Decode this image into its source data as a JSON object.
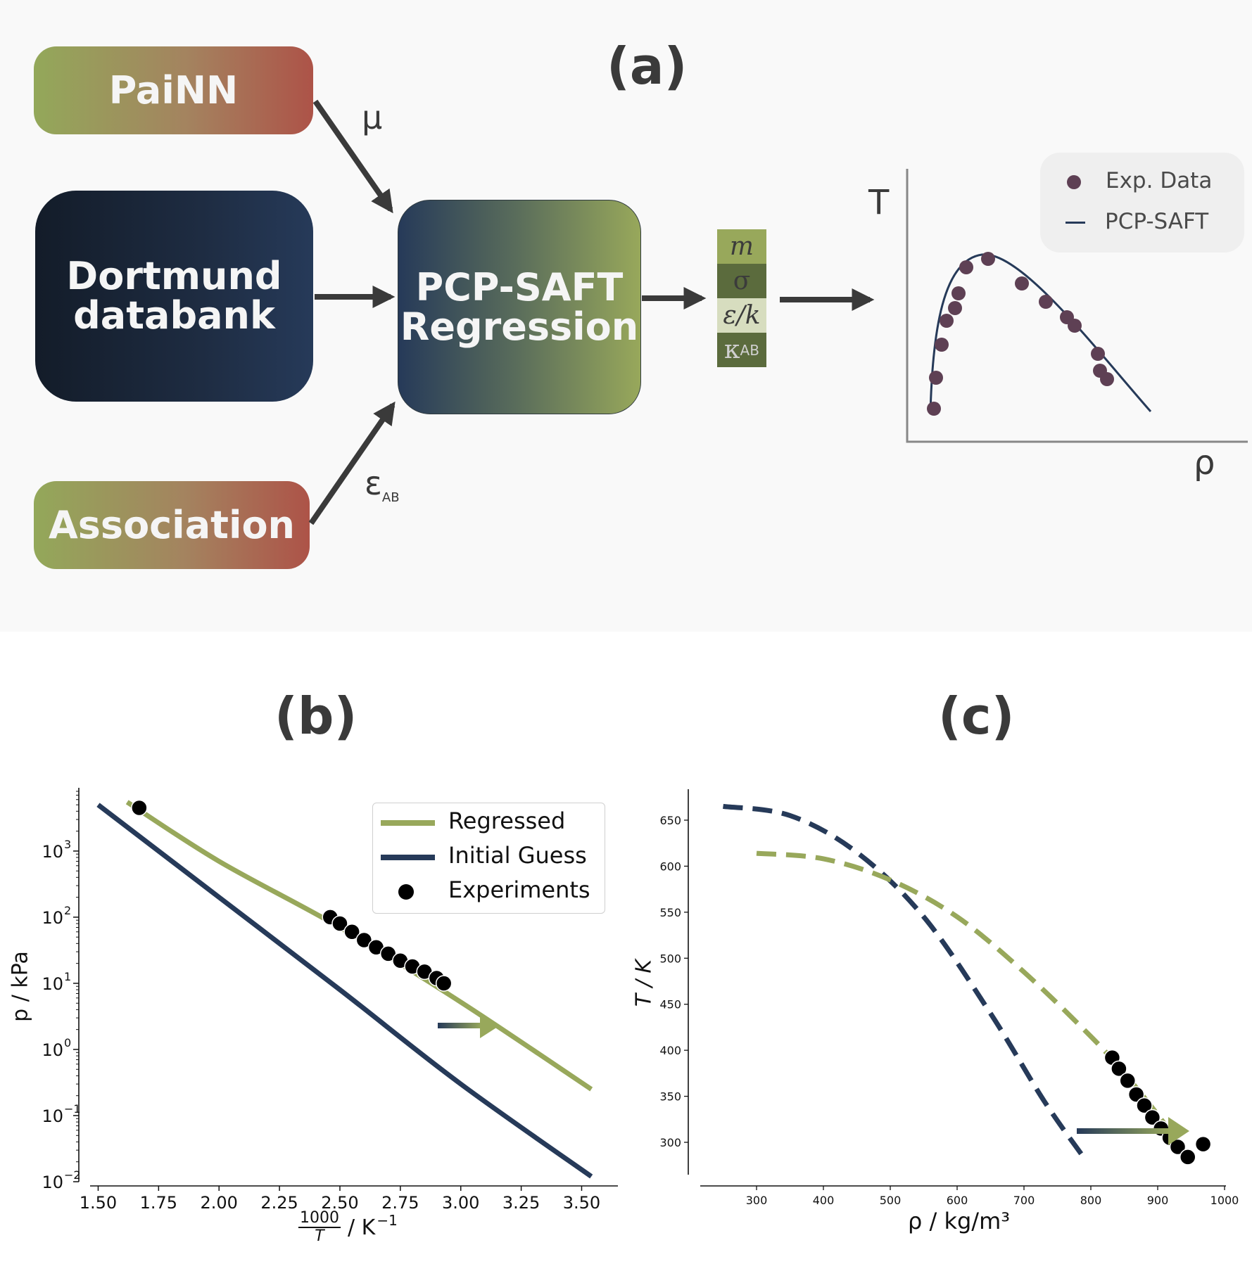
{
  "panel_a": {
    "label": "(a)",
    "boxes": {
      "painn": "PaiNN",
      "dortmund_line1": "Dortmund",
      "dortmund_line2": "databank",
      "association": "Association",
      "pcp_line1": "PCP-SAFT",
      "pcp_line2": "Regression"
    },
    "arrow_labels": {
      "mu": "μ",
      "eps": "ε",
      "eps_sub": "AB"
    },
    "parameters": [
      "m",
      "σ",
      "ε/k",
      "κ"
    ],
    "kappa_sub": "AB",
    "sketch": {
      "y_label": "T",
      "x_label": "ρ",
      "legend": [
        "Exp. Data",
        "PCP-SAFT"
      ]
    },
    "colors": {
      "green": "#98a85b",
      "navy": "#263a59",
      "red": "#ad5348",
      "arrow": "#3a3a3a"
    }
  },
  "panel_b": {
    "label": "(b)",
    "xlabel_num": "1000",
    "xlabel_den": "T",
    "xlabel_unit": "/ K",
    "xlabel_exp": "−1",
    "ylabel": "p / kPa",
    "legend": [
      "Regressed",
      "Initial Guess",
      "Experiments"
    ]
  },
  "panel_c": {
    "label": "(c)",
    "xlabel": "ρ / kg/m³",
    "ylabel": "T / K"
  },
  "chart_data": [
    {
      "type": "line",
      "panel": "(b)",
      "xlabel": "1000/T / K⁻¹",
      "ylabel": "p / kPa",
      "yscale": "log",
      "xlim": [
        1.42,
        3.65
      ],
      "ylim": [
        0.01,
        8000
      ],
      "xticks": [
        "1.50",
        "1.75",
        "2.00",
        "2.25",
        "2.50",
        "2.75",
        "3.00",
        "3.25",
        "3.50"
      ],
      "yticks": [
        "10",
        "10",
        "10",
        "10",
        "10",
        "10"
      ],
      "ytick_exps": [
        "−2",
        "−1",
        "0",
        "1",
        "2",
        "3"
      ],
      "ytick_values": [
        0.01,
        0.1,
        1,
        10,
        100,
        1000
      ],
      "legend_position": "top-right",
      "series": [
        {
          "name": "Regressed",
          "color": "#98a85b",
          "x": [
            1.62,
            2.0,
            2.5,
            3.0,
            3.54
          ],
          "y": [
            5500,
            700,
            70,
            5.2,
            0.25
          ]
        },
        {
          "name": "Initial Guess",
          "color": "#263a59",
          "x": [
            1.5,
            2.0,
            2.5,
            3.0,
            3.54
          ],
          "y": [
            5000,
            200,
            8,
            0.3,
            0.012
          ]
        },
        {
          "name": "Experiments",
          "color": "#000000",
          "marker": "o",
          "x": [
            1.67,
            2.46,
            2.5,
            2.55,
            2.6,
            2.65,
            2.7,
            2.75,
            2.8,
            2.85,
            2.9,
            2.93
          ],
          "y": [
            4500,
            100,
            80,
            60,
            45,
            35,
            28,
            22,
            18,
            15,
            12,
            10
          ]
        }
      ]
    },
    {
      "type": "line",
      "panel": "(c)",
      "xlabel": "ρ / kg/m³",
      "ylabel": "T / K",
      "xlim": [
        215,
        1000
      ],
      "ylim": [
        270,
        683
      ],
      "xticks": [
        "300",
        "400",
        "500",
        "600",
        "700",
        "800",
        "900",
        "1000"
      ],
      "xtick_values": [
        300,
        400,
        500,
        600,
        700,
        800,
        900,
        1000
      ],
      "yticks": [
        "300",
        "350",
        "400",
        "450",
        "500",
        "550",
        "600",
        "650"
      ],
      "ytick_values": [
        300,
        350,
        400,
        450,
        500,
        550,
        600,
        650
      ],
      "series": [
        {
          "name": "Initial Guess",
          "color": "#263a59",
          "style": "dashed",
          "x": [
            250,
            350,
            450,
            550,
            650,
            730,
            790
          ],
          "y": [
            665,
            655,
            615,
            545,
            440,
            345,
            283
          ]
        },
        {
          "name": "Regressed",
          "color": "#98a85b",
          "style": "dashed",
          "x": [
            300,
            400,
            500,
            600,
            700,
            800,
            850,
            900,
            945
          ],
          "y": [
            614,
            608,
            585,
            545,
            485,
            415,
            375,
            330,
            285
          ]
        },
        {
          "name": "Experiments",
          "color": "#000000",
          "marker": "o",
          "x": [
            832,
            842,
            855,
            868,
            880,
            892,
            905,
            918,
            930,
            945,
            968
          ],
          "y": [
            392,
            380,
            367,
            352,
            340,
            327,
            315,
            305,
            295,
            284,
            298
          ]
        }
      ]
    }
  ]
}
